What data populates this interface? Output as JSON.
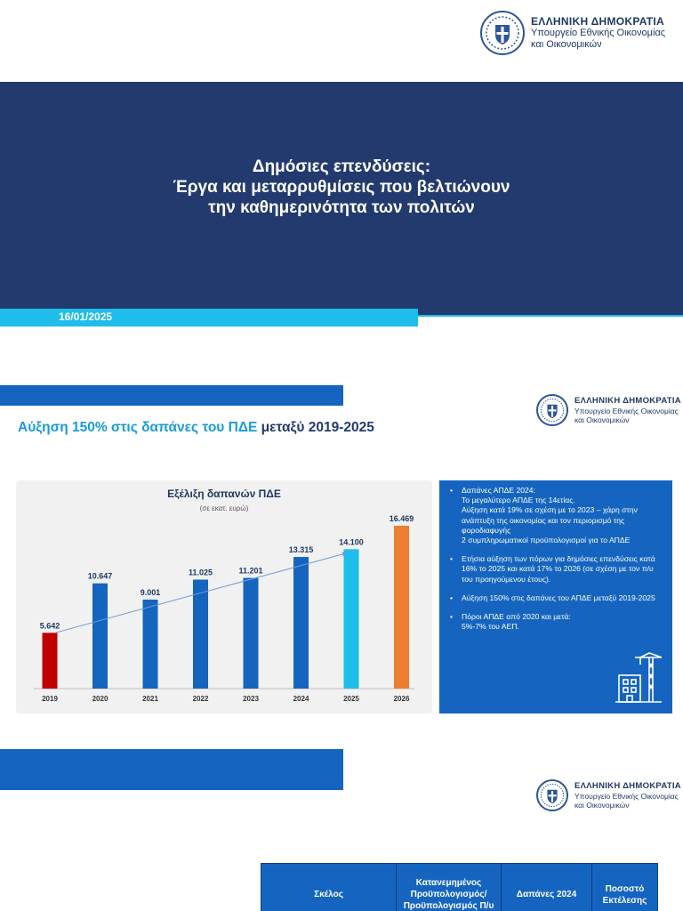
{
  "ministry": {
    "line1": "ΕΛΛΗΝΙΚΗ ΔΗΜΟΚΡΑΤΙΑ",
    "line2": "Υπουργείο Εθνικής Οικονομίας",
    "line3": "και Οικονομικών"
  },
  "cover": {
    "title_line1": "Δημόσιες επενδύσεις:",
    "title_line2": "Έργα και μεταρρυθμίσεις που βελτιώνουν",
    "title_line3": "την καθημερινότητα των πολιτών",
    "date": "16/01/2025"
  },
  "slide2": {
    "title_part1": "Αύξηση 150% στις δαπάνες του ΠΔΕ",
    "title_part2": " μεταξύ 2019-2025",
    "bullets": [
      [
        "Δαπάνες ΑΠΔΕ 2024:",
        "Το μεγαλύτερο ΑΠΔΕ της 14ετίας.",
        "Αύξηση κατά 19% σε σχέση με το 2023 – χάρη στην ανάπτυξη της οικονομίας και τον περιορισμό της φοροδιαφυγής",
        "2 συμπληρωματικοί προϋπολογισμοί για το ΑΠΔΕ"
      ],
      [
        "Ετήσια αύξηση των πόρων για δημόσιες επενδύσεις κατά 16% το 2025 και κατά 17% το 2026 (σε σχέση με τον π/υ του προηγούμενου έτους)."
      ],
      [
        "Αύξηση 150% στις δαπάνες του ΑΠΔΕ μεταξύ 2019-2025"
      ],
      [
        "Πόροι ΑΠΔΕ από 2020 και μετά:",
        "5%-7% του ΑΕΠ."
      ]
    ]
  },
  "chart_data": {
    "type": "bar",
    "title": "Εξέλιξη δαπανών ΠΔΕ",
    "subtitle": "(σε εκατ. ευρώ)",
    "categories": [
      "2019",
      "2020",
      "2021",
      "2022",
      "2023",
      "2024",
      "2025",
      "2026"
    ],
    "values": [
      5642,
      10647,
      9001,
      11025,
      11201,
      13315,
      14100,
      16469
    ],
    "value_labels": [
      "5.642",
      "10.647",
      "9.001",
      "11.025",
      "11.201",
      "13.315",
      "14.100",
      "16.469"
    ],
    "bar_colors": [
      "#c00000",
      "#1565c0",
      "#1565c0",
      "#1565c0",
      "#1565c0",
      "#1565c0",
      "#1fbde9",
      "#ed7d31"
    ],
    "trend": {
      "from": "2019",
      "to": "2025",
      "color": "#6f9bd6"
    },
    "label_color": "#1f3864",
    "ylim": [
      0,
      18000
    ],
    "grid": false
  },
  "slide3": {
    "table_headers": [
      "Σκέλος",
      "Κατανεμημένος Προϋπολογισμός/ Προϋπολογισμός Π/υ",
      "Δαπάνες 2024",
      "Ποσοστό Εκτέλεσης"
    ]
  }
}
